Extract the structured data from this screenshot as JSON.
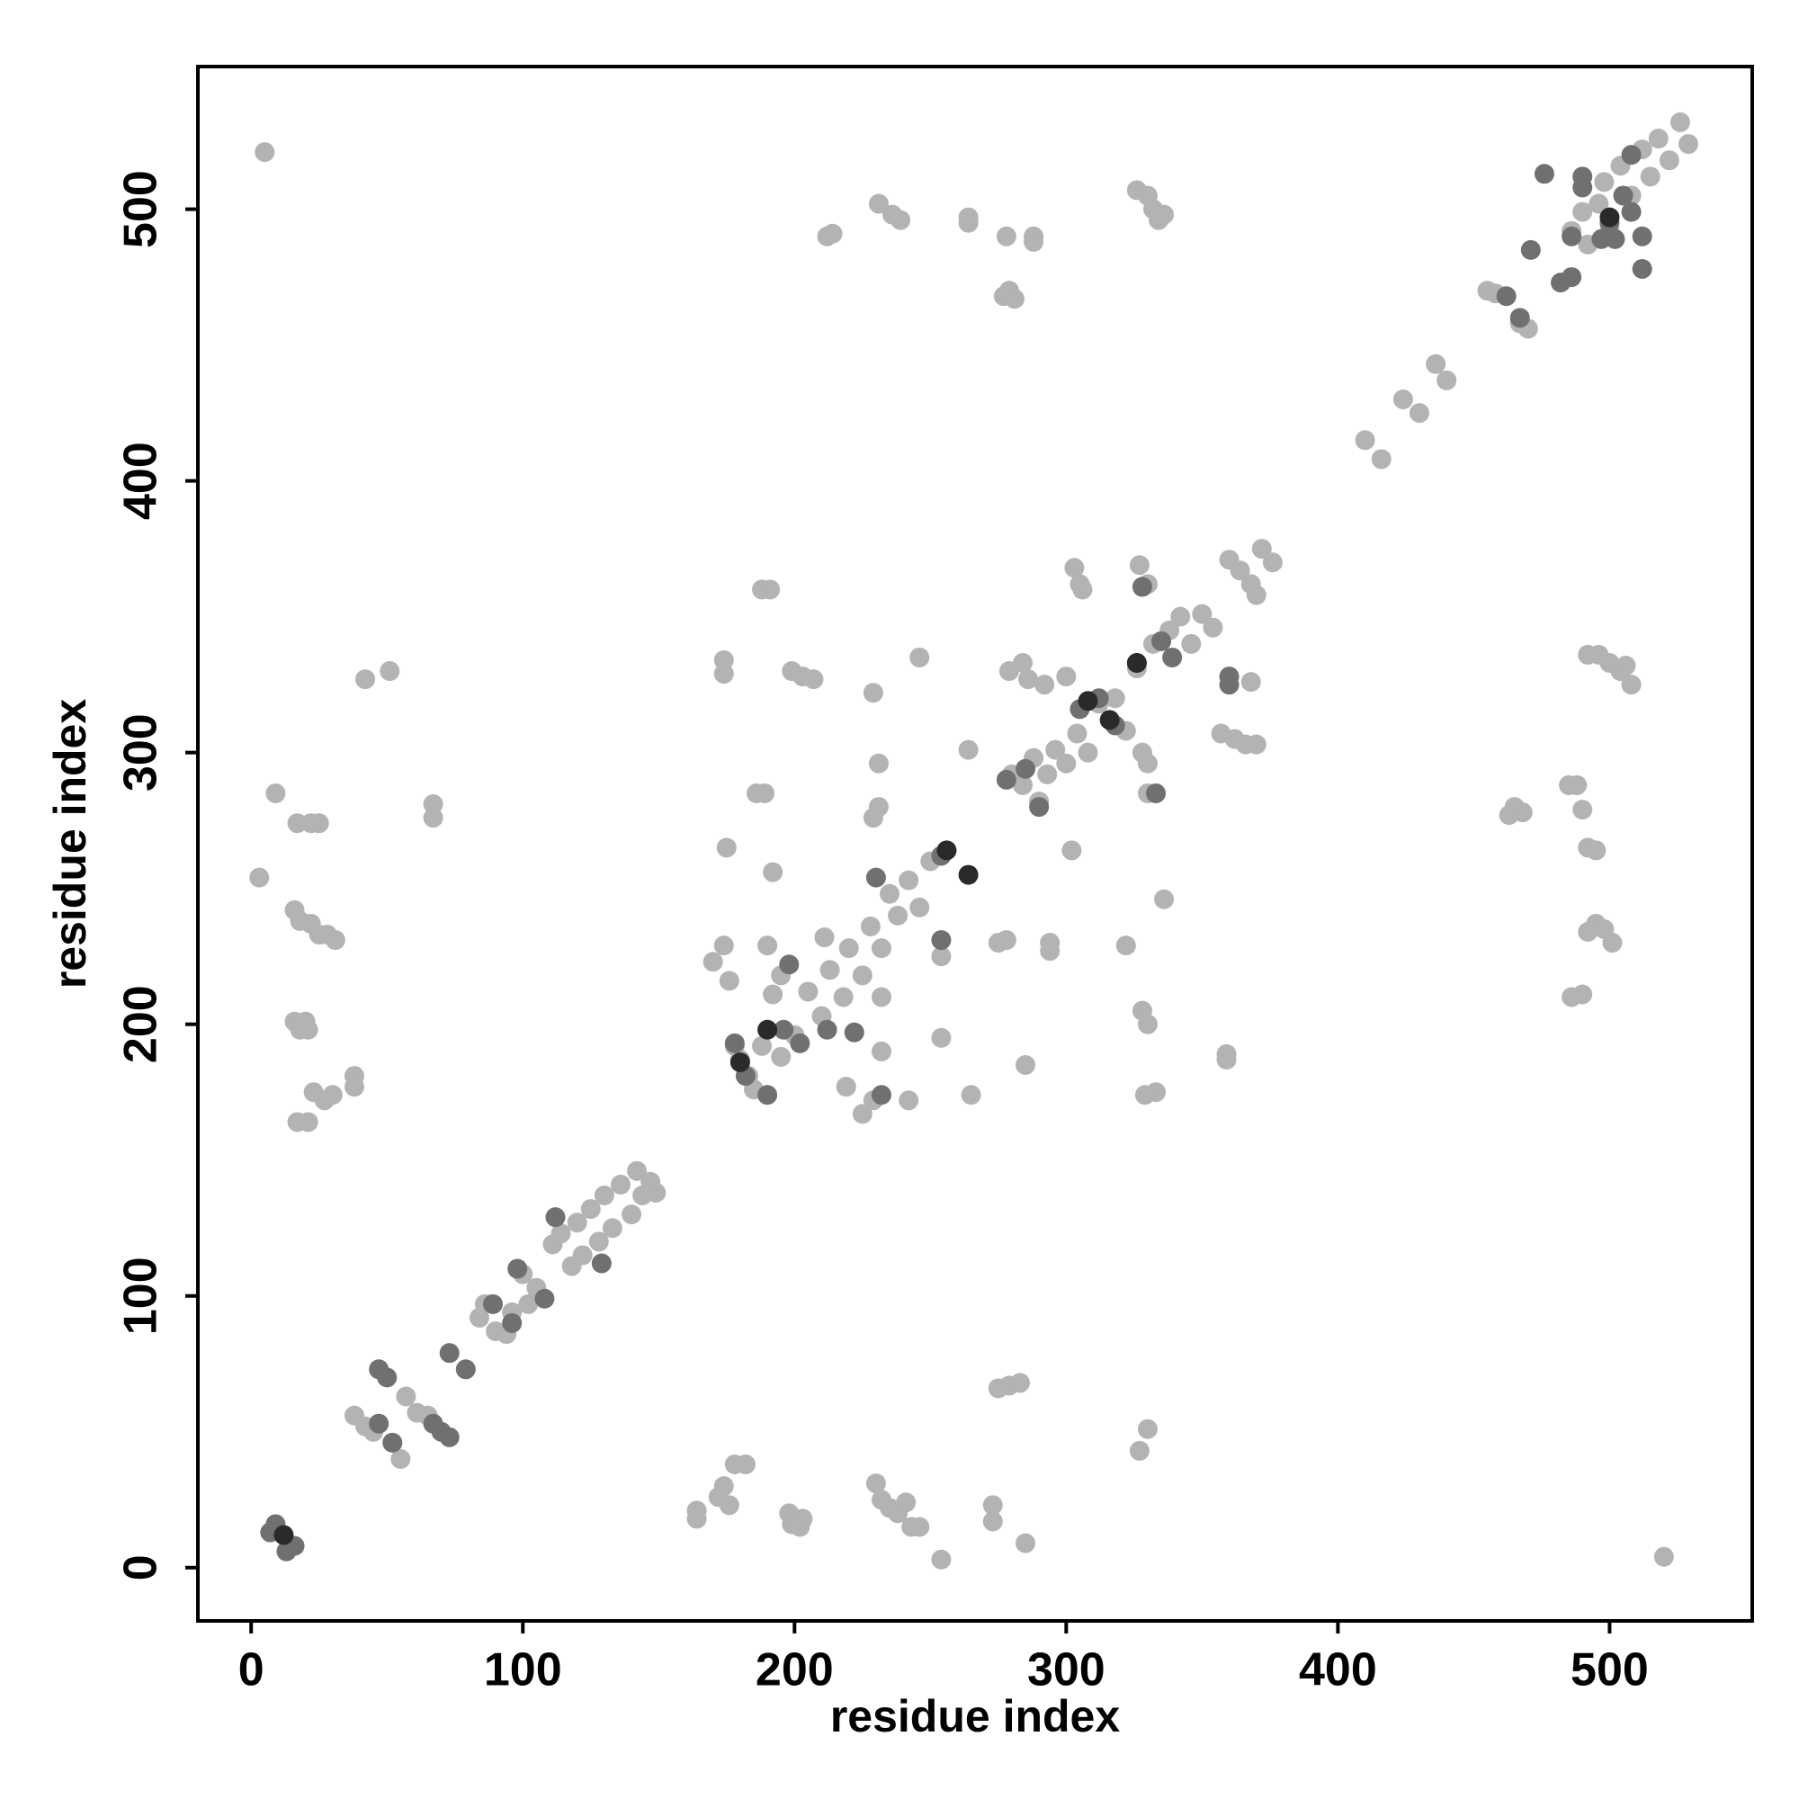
{
  "chart_data": {
    "type": "scatter",
    "xlabel": "residue index",
    "ylabel": "residue index",
    "xlim": [
      -19.6,
      552.5
    ],
    "ylim": [
      -19.6,
      552.5
    ],
    "xticks": [
      0,
      100,
      200,
      300,
      400,
      500
    ],
    "yticks": [
      0,
      100,
      200,
      300,
      400,
      500
    ],
    "series": [
      {
        "color": "#b3b3b3",
        "x": [
          3,
          5,
          9,
          17,
          22,
          25,
          16,
          18,
          22,
          25,
          28,
          31,
          16,
          18,
          20,
          21,
          17,
          21,
          23,
          27,
          30,
          38,
          38,
          42,
          51,
          67,
          67,
          38,
          42,
          45,
          52,
          55,
          57,
          61,
          65,
          84,
          86,
          90,
          94,
          96,
          100,
          102,
          105,
          111,
          114,
          118,
          120,
          122,
          125,
          128,
          130,
          133,
          136,
          140,
          142,
          144,
          147,
          149,
          174,
          174,
          175,
          170,
          174,
          176,
          178,
          180,
          183,
          185,
          188,
          190,
          192,
          195,
          195,
          200,
          205,
          210,
          213,
          218,
          220,
          225,
          228,
          232,
          235,
          238,
          242,
          246,
          250,
          254,
          254,
          188,
          191,
          186,
          189,
          192,
          211,
          199,
          203,
          207,
          229,
          231,
          231,
          229,
          246,
          264,
          265,
          232,
          232,
          225,
          229,
          219,
          242,
          212,
          214,
          231,
          236,
          239,
          264,
          264,
          277,
          279,
          281,
          278,
          288,
          288,
          278,
          275,
          285,
          294,
          294,
          302,
          322,
          328,
          330,
          333,
          329,
          336,
          359,
          359,
          279,
          284,
          286,
          292,
          300,
          303,
          305,
          306,
          327,
          330,
          280,
          284,
          288,
          290,
          293,
          296,
          300,
          304,
          308,
          312,
          318,
          322,
          326,
          328,
          330,
          330,
          332,
          338,
          342,
          346,
          350,
          354,
          326,
          330,
          332,
          334,
          336,
          360,
          364,
          368,
          370,
          372,
          376,
          357,
          362,
          366,
          370,
          368,
          410,
          416,
          424,
          430,
          436,
          440,
          455,
          458,
          467,
          470,
          486,
          490,
          492,
          496,
          498,
          500,
          504,
          508,
          512,
          515,
          518,
          522,
          526,
          529,
          463,
          465,
          468,
          485,
          488,
          490,
          492,
          495,
          492,
          495,
          498,
          501,
          486,
          490,
          492,
          496,
          500,
          504,
          506,
          508,
          164,
          164,
          172,
          174,
          176,
          178,
          182,
          198,
          199,
          203,
          202,
          230,
          232,
          235,
          238,
          241,
          243,
          246,
          254,
          273,
          273,
          275,
          279,
          283,
          285,
          327,
          330,
          520
        ],
        "y": [
          254,
          521,
          285,
          274,
          274,
          274,
          242,
          238,
          237,
          233,
          233,
          231,
          201,
          198,
          201,
          198,
          164,
          164,
          175,
          172,
          174,
          181,
          177,
          327,
          330,
          276,
          281,
          56,
          52,
          50,
          46,
          40,
          63,
          57,
          56,
          92,
          97,
          87,
          86,
          94,
          108,
          97,
          103,
          119,
          123,
          111,
          127,
          115,
          132,
          120,
          137,
          125,
          141,
          130,
          146,
          137,
          142,
          138,
          334,
          329,
          265,
          223,
          229,
          216,
          192,
          187,
          181,
          176,
          192,
          229,
          211,
          218,
          188,
          196,
          212,
          203,
          220,
          210,
          228,
          218,
          236,
          228,
          248,
          240,
          253,
          243,
          260,
          225,
          195,
          360,
          360,
          285,
          285,
          256,
          232,
          330,
          328,
          327,
          322,
          296,
          280,
          276,
          335,
          301,
          174,
          210,
          190,
          167,
          172,
          177,
          172,
          490,
          491,
          502,
          498,
          496,
          495,
          497,
          468,
          470,
          467,
          490,
          490,
          488,
          231,
          230,
          185,
          230,
          227,
          264,
          229,
          205,
          200,
          175,
          174,
          246,
          187,
          189,
          330,
          333,
          327,
          325,
          328,
          368,
          362,
          360,
          369,
          362,
          292,
          288,
          298,
          282,
          292,
          301,
          296,
          307,
          300,
          318,
          320,
          308,
          331,
          300,
          296,
          285,
          340,
          345,
          350,
          340,
          351,
          346,
          507,
          505,
          500,
          496,
          498,
          371,
          367,
          362,
          358,
          375,
          370,
          307,
          305,
          303,
          303,
          326,
          415,
          408,
          430,
          425,
          443,
          437,
          470,
          469,
          458,
          456,
          492,
          499,
          487,
          502,
          510,
          492,
          516,
          505,
          522,
          512,
          526,
          518,
          532,
          524,
          277,
          280,
          278,
          288,
          288,
          279,
          265,
          264,
          234,
          237,
          235,
          230,
          210,
          211,
          336,
          336,
          333,
          330,
          332,
          325,
          21,
          18,
          26,
          30,
          23,
          38,
          38,
          20,
          16,
          18,
          15,
          31,
          25,
          22,
          20,
          24,
          15,
          15,
          3,
          23,
          17,
          66,
          67,
          68,
          9,
          43,
          51,
          4
        ]
      },
      {
        "color": "#707070",
        "x": [
          7,
          9,
          13,
          16,
          47,
          50,
          47,
          52,
          67,
          70,
          73,
          73,
          79,
          89,
          96,
          98,
          108,
          112,
          129,
          178,
          182,
          190,
          196,
          198,
          202,
          212,
          222,
          230,
          232,
          254,
          254,
          278,
          285,
          290,
          305,
          312,
          318,
          326,
          328,
          333,
          335,
          339,
          360,
          360,
          462,
          467,
          471,
          476,
          482,
          486,
          490,
          490,
          497,
          500,
          505,
          508,
          508,
          512,
          512,
          502,
          486
        ],
        "y": [
          13,
          16,
          6,
          8,
          73,
          70,
          53,
          46,
          53,
          50,
          48,
          79,
          73,
          97,
          90,
          110,
          99,
          129,
          112,
          193,
          181,
          174,
          198,
          222,
          193,
          198,
          197,
          254,
          174,
          231,
          262,
          290,
          294,
          280,
          316,
          320,
          310,
          333,
          361,
          285,
          341,
          335,
          328,
          325,
          468,
          460,
          485,
          513,
          473,
          475,
          508,
          512,
          489,
          495,
          505,
          499,
          520,
          478,
          490,
          489,
          490
        ]
      },
      {
        "color": "#2a2a2a",
        "x": [
          180,
          256,
          264,
          190,
          308,
          316,
          326,
          500,
          12
        ],
        "y": [
          186,
          264,
          255,
          198,
          319,
          312,
          333,
          497,
          12
        ]
      }
    ]
  }
}
